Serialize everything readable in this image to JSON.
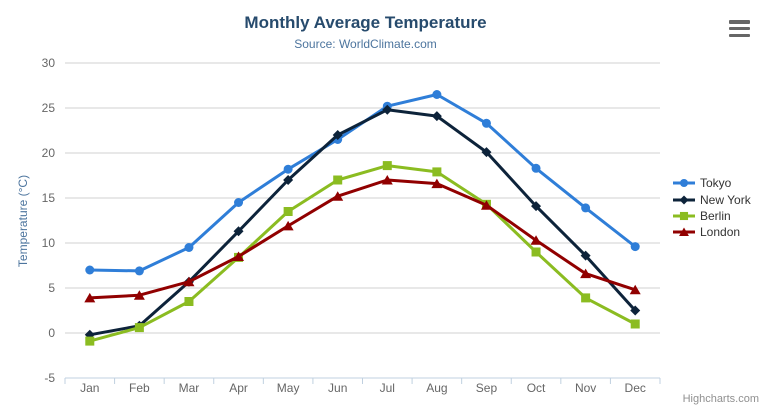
{
  "header": {
    "title": "Monthly Average Temperature",
    "subtitle": "Source: WorldClimate.com"
  },
  "toolbar": {
    "menu_icon": "hamburger-menu-icon"
  },
  "chart_data": {
    "type": "line",
    "title": "Monthly Average Temperature",
    "subtitle": "Source: WorldClimate.com",
    "categories": [
      "Jan",
      "Feb",
      "Mar",
      "Apr",
      "May",
      "Jun",
      "Jul",
      "Aug",
      "Sep",
      "Oct",
      "Nov",
      "Dec"
    ],
    "series": [
      {
        "name": "Tokyo",
        "color": "#2f7ed8",
        "marker": "circle",
        "values": [
          7.0,
          6.9,
          9.5,
          14.5,
          18.2,
          21.5,
          25.2,
          26.5,
          23.3,
          18.3,
          13.9,
          9.6
        ]
      },
      {
        "name": "New York",
        "color": "#0d233a",
        "marker": "diamond",
        "values": [
          -0.2,
          0.8,
          5.7,
          11.3,
          17.0,
          22.0,
          24.8,
          24.1,
          20.1,
          14.1,
          8.6,
          2.5
        ]
      },
      {
        "name": "Berlin",
        "color": "#8bbc21",
        "marker": "square",
        "values": [
          -0.9,
          0.6,
          3.5,
          8.4,
          13.5,
          17.0,
          18.6,
          17.9,
          14.3,
          9.0,
          3.9,
          1.0
        ]
      },
      {
        "name": "London",
        "color": "#910000",
        "marker": "triangle",
        "values": [
          3.9,
          4.2,
          5.7,
          8.5,
          11.9,
          15.2,
          17.0,
          16.6,
          14.2,
          10.3,
          6.6,
          4.8
        ]
      }
    ],
    "xlabel": "",
    "ylabel": "Temperature (°C)",
    "ylim": [
      -5,
      30
    ],
    "yticks": [
      -5,
      0,
      5,
      10,
      15,
      20,
      25,
      30
    ],
    "grid": true,
    "legend_position": "right"
  },
  "credits": {
    "label": "Highcharts.com"
  },
  "colors": {
    "title": "#274b6d",
    "subtitle": "#4d759e",
    "axis_label": "#666666",
    "gridline": "#d0d0d0",
    "axis_line": "#c0d0e0",
    "legend_text": "#333333",
    "credits": "#909090"
  }
}
